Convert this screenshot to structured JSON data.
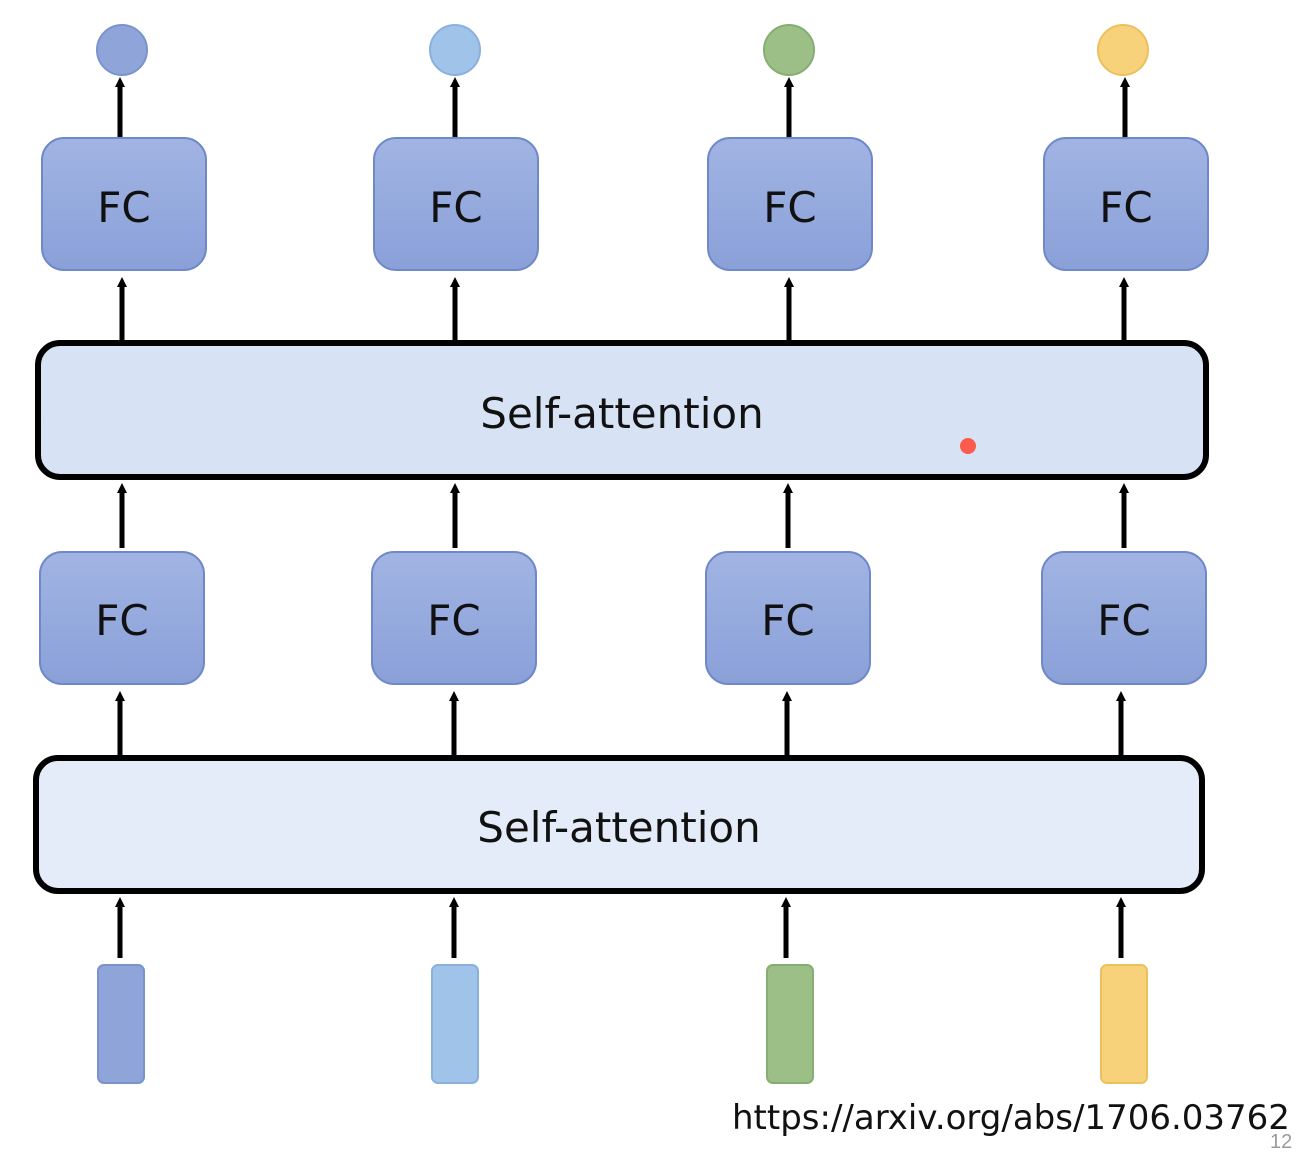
{
  "colors": {
    "dark_blue": "#8fa5d9",
    "light_blue": "#9fc3e9",
    "green": "#9cbf87",
    "yellow": "#f8d27a",
    "fc_fill": "#93a9dd",
    "fc_stroke": "#6e88c9",
    "sa_top_fill": "#d7e3f5",
    "sa_bottom_fill": "#e3ecf8"
  },
  "layers": {
    "fc_top": [
      "FC",
      "FC",
      "FC",
      "FC"
    ],
    "self_attention_top": "Self-attention",
    "fc_bottom": [
      "FC",
      "FC",
      "FC",
      "FC"
    ],
    "self_attention_bottom": "Self-attention"
  },
  "citation": "https://arxiv.org/abs/1706.03762",
  "page_number": "12"
}
